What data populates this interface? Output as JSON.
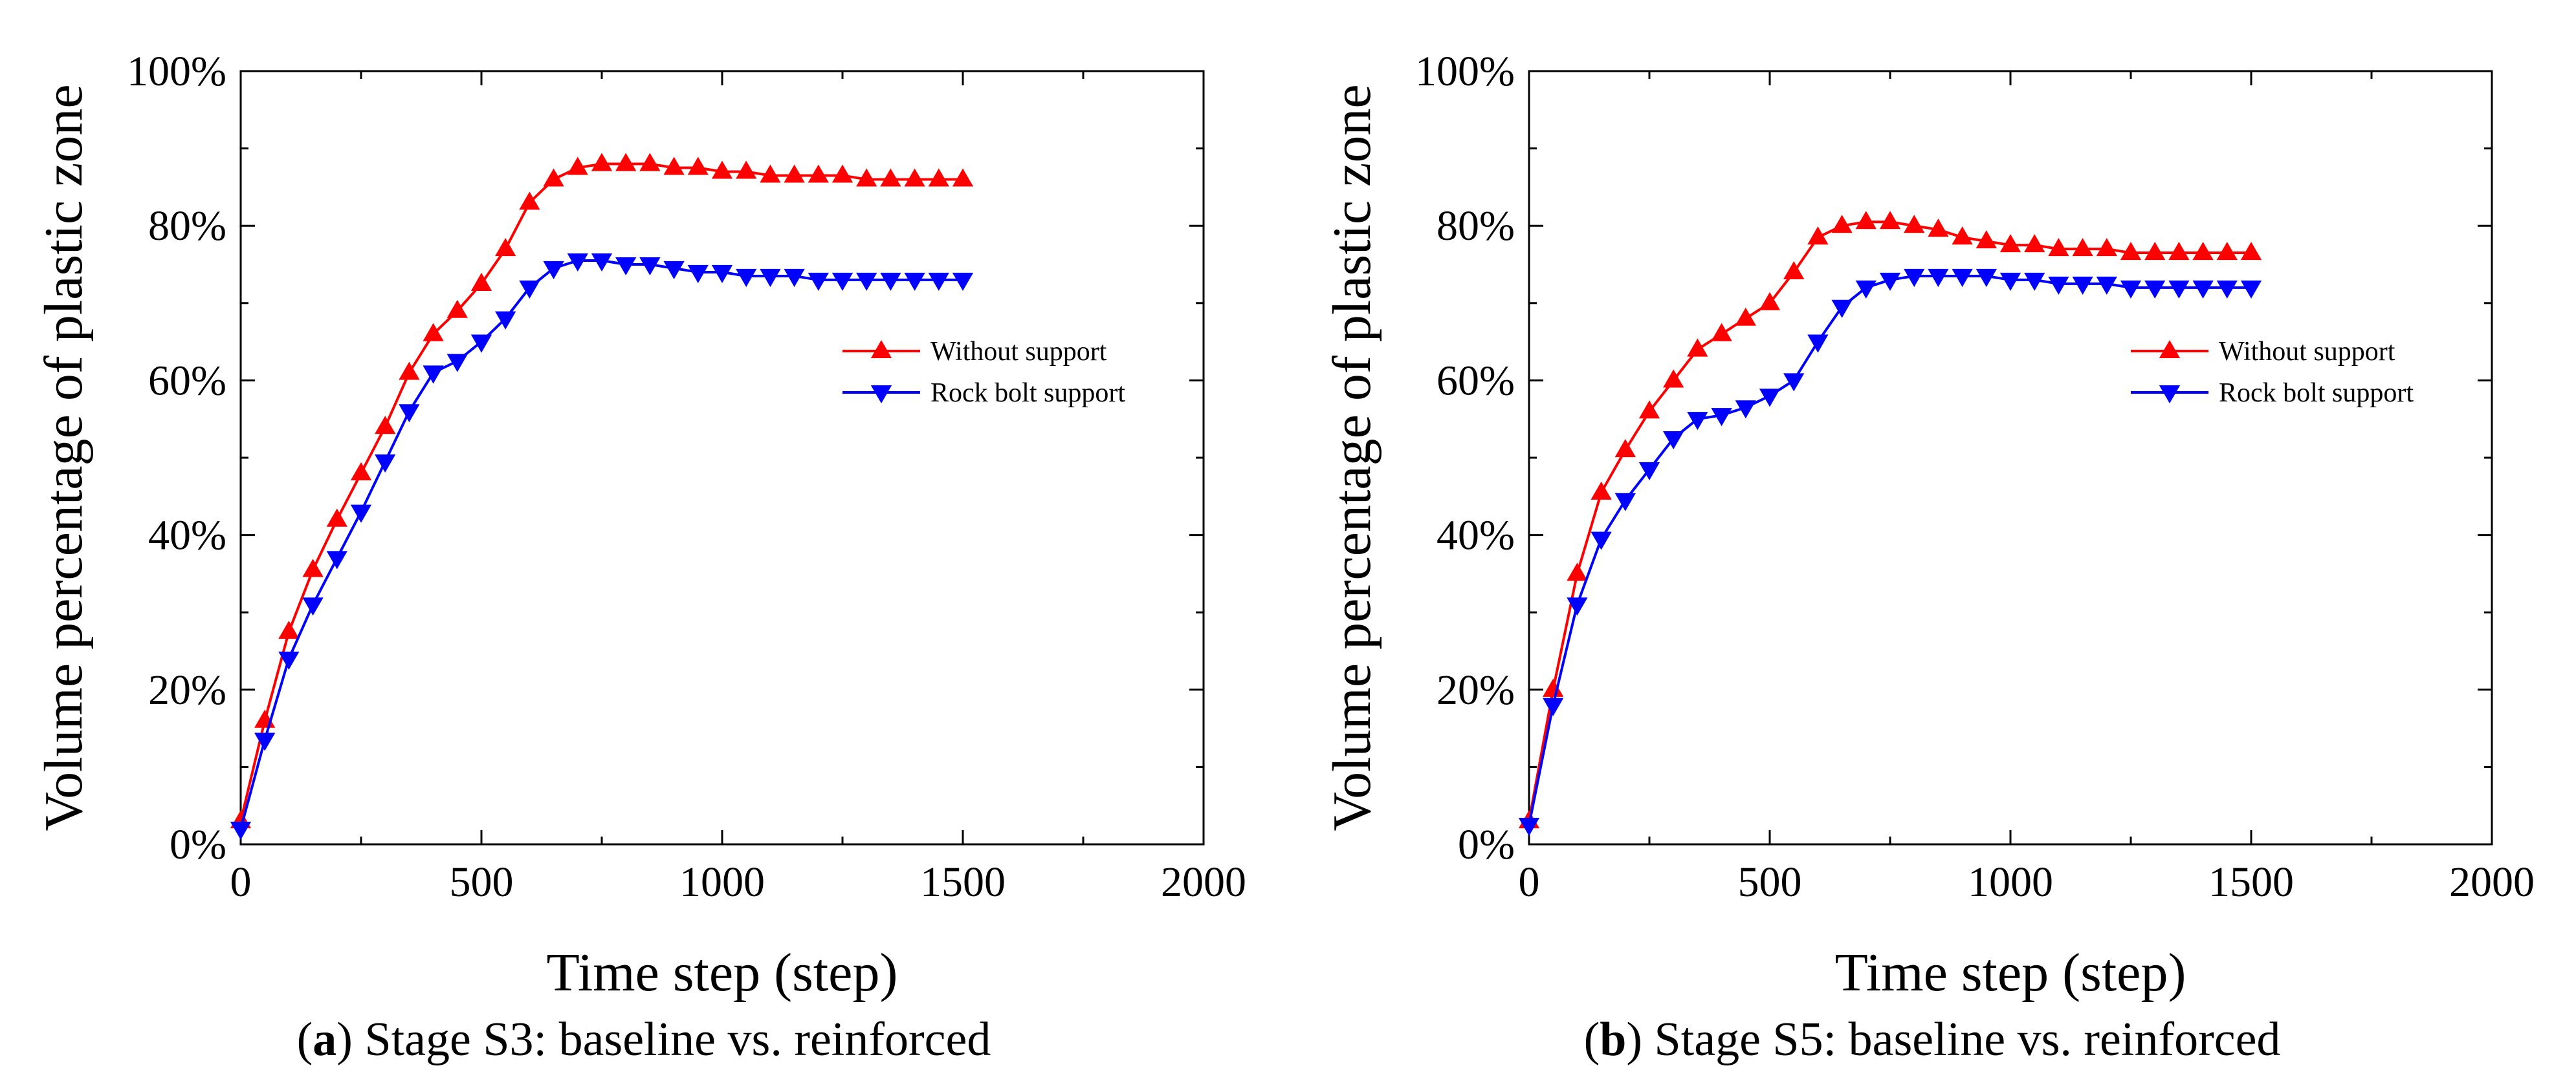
{
  "chart_data": [
    {
      "type": "line",
      "panel_letter": "a",
      "caption": "Stage S3: baseline vs. reinforced",
      "xlabel": "Time step (step)",
      "ylabel": "Volume percentage of plastic zone",
      "xlim": [
        0,
        2000
      ],
      "ylim": [
        0,
        100
      ],
      "xticks": [
        0,
        500,
        1000,
        1500,
        2000
      ],
      "yticks": [
        0,
        20,
        40,
        60,
        80,
        100
      ],
      "xtick_labels": [
        "0",
        "500",
        "1000",
        "1500",
        "2000"
      ],
      "ytick_labels": [
        "0%",
        "20%",
        "40%",
        "60%",
        "80%",
        "100%"
      ],
      "grid": false,
      "legend_position": "right-middle",
      "x": [
        0,
        50,
        100,
        150,
        200,
        250,
        300,
        350,
        400,
        450,
        500,
        550,
        600,
        650,
        700,
        750,
        800,
        850,
        900,
        950,
        1000,
        1050,
        1100,
        1150,
        1200,
        1250,
        1300,
        1350,
        1400,
        1450,
        1500
      ],
      "series": [
        {
          "name": "Without support",
          "color": "#ff0000",
          "marker": "triangle-up",
          "values": [
            3,
            16,
            27.5,
            35.5,
            42,
            48,
            54,
            61,
            66,
            69,
            72.5,
            77,
            83,
            86,
            87.5,
            88,
            88,
            88,
            87.5,
            87.5,
            87,
            87,
            86.5,
            86.5,
            86.5,
            86.5,
            86,
            86,
            86,
            86,
            86
          ]
        },
        {
          "name": "Rock bolt support",
          "color": "#0000ff",
          "marker": "triangle-down",
          "values": [
            2,
            13.5,
            24,
            31,
            37,
            43,
            49.5,
            56,
            61,
            62.5,
            65,
            68,
            72,
            74.5,
            75.5,
            75.5,
            75,
            75,
            74.5,
            74,
            74,
            73.5,
            73.5,
            73.5,
            73,
            73,
            73,
            73,
            73,
            73,
            73
          ]
        }
      ]
    },
    {
      "type": "line",
      "panel_letter": "b",
      "caption": "Stage S5: baseline vs. reinforced",
      "xlabel": "Time step (step)",
      "ylabel": "Volume percentage of plastic zone",
      "xlim": [
        0,
        2000
      ],
      "ylim": [
        0,
        100
      ],
      "xticks": [
        0,
        500,
        1000,
        1500,
        2000
      ],
      "yticks": [
        0,
        20,
        40,
        60,
        80,
        100
      ],
      "xtick_labels": [
        "0",
        "500",
        "1000",
        "1500",
        "2000"
      ],
      "ytick_labels": [
        "0%",
        "20%",
        "40%",
        "60%",
        "80%",
        "100%"
      ],
      "grid": false,
      "legend_position": "right-middle",
      "x": [
        0,
        50,
        100,
        150,
        200,
        250,
        300,
        350,
        400,
        450,
        500,
        550,
        600,
        650,
        700,
        750,
        800,
        850,
        900,
        950,
        1000,
        1050,
        1100,
        1150,
        1200,
        1250,
        1300,
        1350,
        1400,
        1450,
        1500
      ],
      "series": [
        {
          "name": "Without support",
          "color": "#ff0000",
          "marker": "triangle-up",
          "values": [
            3,
            20,
            35,
            45.5,
            51,
            56,
            60,
            64,
            66,
            68,
            70,
            74,
            78.5,
            80,
            80.5,
            80.5,
            80,
            79.5,
            78.5,
            78,
            77.5,
            77.5,
            77,
            77,
            77,
            76.5,
            76.5,
            76.5,
            76.5,
            76.5,
            76.5
          ]
        },
        {
          "name": "Rock bolt support",
          "color": "#0000ff",
          "marker": "triangle-down",
          "values": [
            2.5,
            18,
            31,
            39.5,
            44.5,
            48.5,
            52.5,
            55,
            55.5,
            56.5,
            58,
            60,
            65,
            69.5,
            72,
            73,
            73.5,
            73.5,
            73.5,
            73.5,
            73,
            73,
            72.5,
            72.5,
            72.5,
            72,
            72,
            72,
            72,
            72,
            72
          ]
        }
      ]
    }
  ]
}
